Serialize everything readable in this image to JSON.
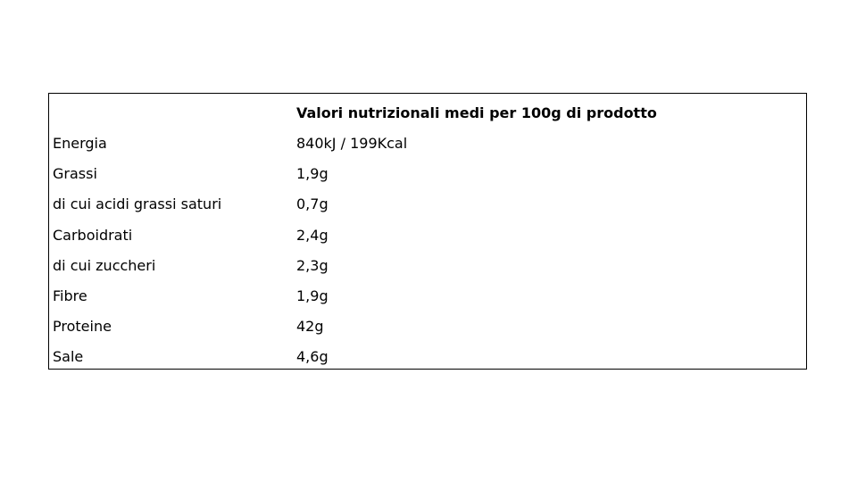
{
  "table": {
    "header": [
      "",
      "Valori nutrizionali medi per 100g di prodotto"
    ],
    "rows": [
      [
        "Energia",
        "840kJ / 199Kcal"
      ],
      [
        "Grassi",
        "1,9g"
      ],
      [
        "di cui acidi grassi saturi",
        "0,7g"
      ],
      [
        "Carboidrati",
        "2,4g"
      ],
      [
        "di cui zuccheri",
        "2,3g"
      ],
      [
        "Fibre",
        "1,9g"
      ],
      [
        "Proteine",
        "42g"
      ],
      [
        "Sale",
        "4,6g"
      ]
    ]
  }
}
